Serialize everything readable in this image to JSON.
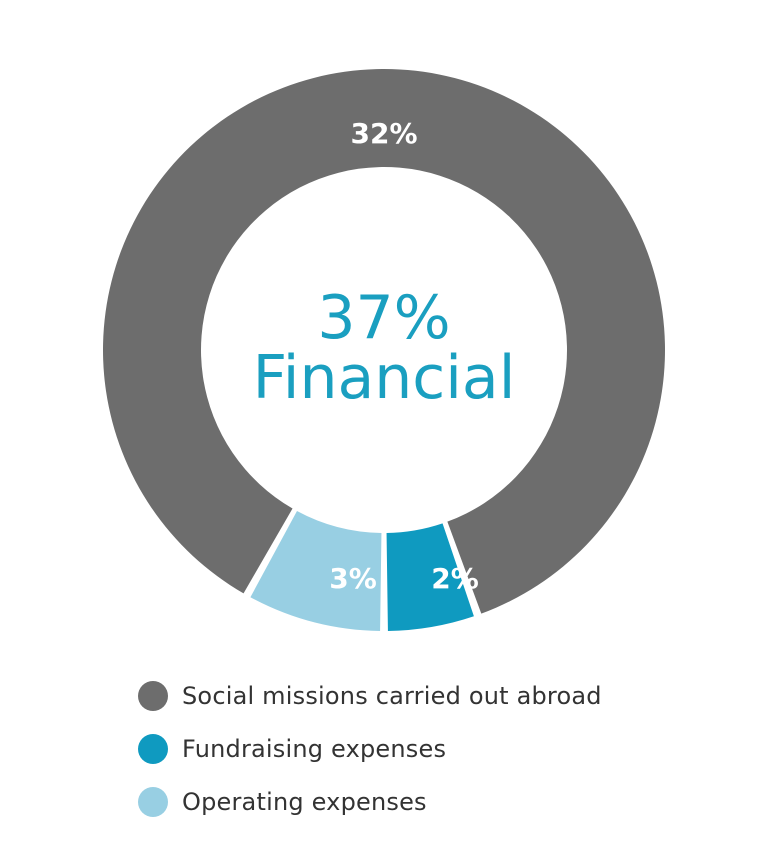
{
  "chart_data": {
    "type": "pie",
    "variant": "donut",
    "center_label": {
      "value": "37%",
      "text": "Financial"
    },
    "slices": [
      {
        "name": "Social missions carried out abroad",
        "label": "32%",
        "value": 32,
        "color": "#6d6d6d"
      },
      {
        "name": "Fundraising expenses",
        "label": "2%",
        "value": 2,
        "color": "#0f9ac0"
      },
      {
        "name": "Operating expenses",
        "label": "3%",
        "value": 3,
        "color": "#98cfe3"
      }
    ],
    "legend_placement": "bottom-left",
    "colors": {
      "center_text": "#1a9fc0",
      "slice_label": "#ffffff",
      "legend_text": "#333333"
    }
  }
}
